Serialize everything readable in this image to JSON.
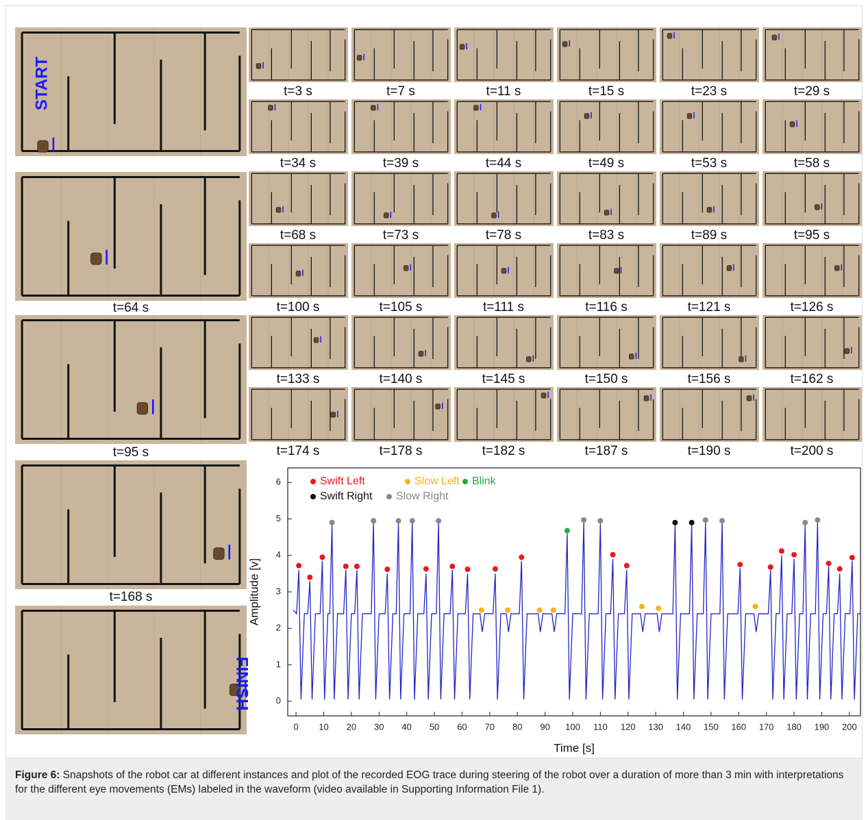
{
  "figure": {
    "start_label": "START",
    "finish_label": "FINISH",
    "big_labels": [
      "t=64 s",
      "t=95 s",
      "t=168 s"
    ],
    "snapshots": [
      "t=3 s",
      "t=7 s",
      "t=11 s",
      "t=15 s",
      "t=23 s",
      "t=29 s",
      "t=34 s",
      "t=39 s",
      "t=44 s",
      "t=49 s",
      "t=53 s",
      "t=58 s",
      "t=68 s",
      "t=73 s",
      "t=78 s",
      "t=83 s",
      "t=89 s",
      "t=95 s",
      "t=100 s",
      "t=105 s",
      "t=111 s",
      "t=116 s",
      "t=121 s",
      "t=126 s",
      "t=133 s",
      "t=140 s",
      "t=145 s",
      "t=150 s",
      "t=156 s",
      "t=162 s",
      "t=174 s",
      "t=178 s",
      "t=182 s",
      "t=187 s",
      "t=190 s",
      "t=200 s"
    ]
  },
  "chart_data": {
    "type": "line",
    "x_label": "Time [s]",
    "y_label": "Amplitude [v]",
    "xlim": [
      -3,
      204
    ],
    "ylim": [
      -0.4,
      6.4
    ],
    "xticks": [
      0,
      10,
      20,
      30,
      40,
      50,
      60,
      70,
      80,
      90,
      100,
      110,
      120,
      130,
      140,
      150,
      160,
      170,
      180,
      190,
      200
    ],
    "yticks": [
      0,
      1,
      2,
      3,
      4,
      5,
      6
    ],
    "series": [
      {
        "type": "line",
        "color": "#2323c8",
        "x": [
          -1,
          0.2,
          1,
          1.8,
          3,
          4.2,
          5,
          5.8,
          7,
          8.7,
          9.5,
          10.3,
          11.5,
          12.2,
          13,
          13.8,
          15,
          17.2,
          18,
          18.8,
          20,
          21.2,
          22,
          22.8,
          24,
          27.2,
          28,
          28.8,
          30,
          32.2,
          33,
          33.8,
          35,
          36.2,
          37,
          37.8,
          39,
          41.2,
          42,
          42.8,
          44,
          46.2,
          47,
          47.8,
          49,
          50.7,
          51.5,
          52.3,
          53.5,
          55.7,
          56.5,
          57.3,
          58.5,
          61.2,
          62,
          62.8,
          64,
          66.5,
          67.3,
          68.2,
          71.2,
          72,
          72.8,
          74,
          76,
          76.8,
          77.7,
          80.7,
          81.5,
          82.3,
          83.5,
          87.5,
          88.3,
          89.2,
          92.5,
          93.3,
          94.2,
          97.2,
          98,
          98.8,
          100,
          103.2,
          104,
          104.8,
          106,
          109.2,
          110,
          110.8,
          112,
          113.7,
          114.5,
          115.3,
          116.5,
          118.7,
          119.5,
          120.3,
          121.5,
          124.5,
          125.3,
          126.2,
          130.5,
          131.3,
          132.2,
          136.2,
          137,
          137.8,
          139,
          142.2,
          143,
          143.8,
          145,
          147.2,
          148,
          148.8,
          150,
          153.2,
          154,
          154.8,
          156,
          159.7,
          160.5,
          161.3,
          162.5,
          165.5,
          166.3,
          167.2,
          170.7,
          171.5,
          172.3,
          173.5,
          174.7,
          175.5,
          176.3,
          177.5,
          179.2,
          180,
          180.8,
          182,
          183.2,
          184,
          184.8,
          186,
          187.7,
          188.5,
          189.3,
          190.5,
          191.7,
          192.5,
          193.3,
          194.5,
          195.7,
          196.5,
          197.3,
          198.5,
          200.2,
          201,
          201.8,
          203,
          204
        ],
        "values": [
          2.5,
          2.4,
          3.6,
          0.05,
          2.4,
          2.4,
          3.3,
          0.05,
          2.4,
          2.4,
          3.85,
          0.05,
          2.4,
          2.4,
          4.85,
          0.05,
          2.4,
          2.4,
          3.6,
          0.05,
          2.4,
          2.4,
          3.6,
          0.05,
          2.4,
          2.4,
          4.9,
          0.05,
          2.4,
          2.4,
          3.5,
          0.05,
          2.4,
          2.4,
          4.9,
          0.05,
          2.4,
          2.4,
          4.9,
          0.05,
          2.4,
          2.4,
          3.5,
          0.05,
          2.4,
          2.4,
          4.9,
          0.05,
          2.4,
          2.4,
          3.6,
          0.05,
          2.4,
          2.4,
          3.5,
          0.05,
          2.4,
          2.4,
          1.9,
          2.4,
          2.4,
          3.5,
          0.05,
          2.4,
          2.4,
          1.9,
          2.4,
          2.4,
          3.85,
          0.05,
          2.4,
          2.4,
          1.9,
          2.4,
          2.4,
          1.9,
          2.4,
          2.4,
          4.6,
          0.05,
          2.4,
          2.4,
          4.9,
          0.05,
          2.4,
          2.4,
          4.9,
          0.05,
          2.4,
          2.4,
          3.9,
          0.05,
          2.4,
          2.4,
          3.6,
          0.05,
          2.4,
          2.4,
          1.9,
          2.4,
          2.4,
          1.9,
          2.4,
          2.4,
          4.85,
          0.05,
          2.4,
          2.4,
          4.85,
          0.05,
          2.4,
          2.4,
          4.9,
          0.05,
          2.4,
          2.4,
          4.9,
          0.05,
          2.4,
          2.4,
          3.65,
          0.05,
          2.4,
          2.4,
          1.9,
          2.4,
          2.4,
          3.6,
          0.05,
          2.4,
          2.4,
          4.0,
          0.05,
          2.4,
          2.4,
          3.9,
          0.05,
          2.4,
          2.4,
          4.85,
          0.05,
          2.4,
          2.4,
          4.9,
          0.05,
          2.4,
          2.4,
          3.7,
          0.05,
          2.4,
          2.4,
          3.5,
          0.05,
          2.4,
          2.4,
          3.85,
          0.05,
          2.4,
          2.4
        ]
      },
      {
        "type": "scatter",
        "name": "Swift Left",
        "color": "#e8191e",
        "x": [
          1,
          5,
          9.5,
          18,
          22,
          33,
          47,
          56.5,
          62,
          72,
          81.5,
          114.5,
          119.5,
          160.5,
          171.5,
          175.5,
          180,
          192.5,
          196.5,
          201
        ],
        "values": [
          3.72,
          3.4,
          3.95,
          3.7,
          3.7,
          3.62,
          3.63,
          3.7,
          3.62,
          3.63,
          3.95,
          4.02,
          3.72,
          3.75,
          3.68,
          4.12,
          4.02,
          3.78,
          3.63,
          3.94
        ]
      },
      {
        "type": "scatter",
        "name": "Slow Left",
        "color": "#f5b21a",
        "x": [
          67,
          76.5,
          88,
          93,
          125,
          131,
          166
        ],
        "values": [
          2.5,
          2.5,
          2.5,
          2.5,
          2.6,
          2.55,
          2.6
        ]
      },
      {
        "type": "scatter",
        "name": "Blink",
        "color": "#22aa44",
        "x": [
          98
        ],
        "values": [
          4.68
        ]
      },
      {
        "type": "scatter",
        "name": "Swift Right",
        "color": "#111111",
        "x": [
          137,
          143
        ],
        "values": [
          4.9,
          4.9
        ]
      },
      {
        "type": "scatter",
        "name": "Slow Right",
        "color": "#888888",
        "x": [
          13,
          28,
          37,
          42,
          51.5,
          104,
          110,
          148,
          154,
          184,
          188.5
        ],
        "values": [
          4.9,
          4.95,
          4.95,
          4.95,
          4.95,
          4.97,
          4.95,
          4.97,
          4.95,
          4.9,
          4.97
        ]
      }
    ]
  },
  "caption": {
    "label": "Figure 6:",
    "text": " Snapshots of the robot car at different instances and plot of the recorded EOG trace during steering of the robot over a duration of more than 3 min with interpretations for the different eye movements (EMs) labeled in the waveform (video available in Supporting Information File 1)."
  }
}
